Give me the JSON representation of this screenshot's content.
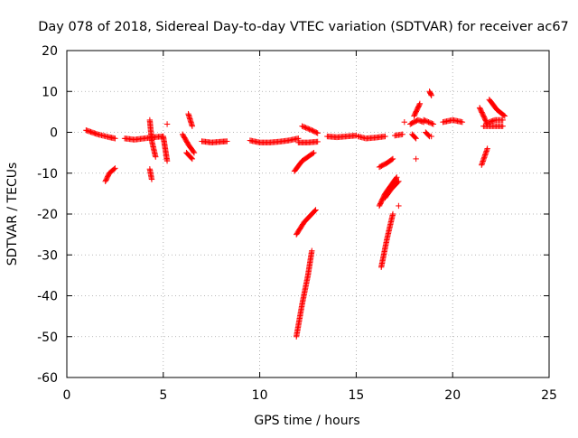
{
  "chart_data": {
    "type": "scatter",
    "title": "Day 078 of 2018, Sidereal Day-to-day VTEC variation (SDTVAR) for receiver ac67",
    "xlabel": "GPS time / hours",
    "ylabel": "SDTVAR / TECUs",
    "xlim": [
      0,
      25
    ],
    "ylim": [
      -60,
      20
    ],
    "xticks": [
      0,
      5,
      10,
      15,
      20,
      25
    ],
    "yticks": [
      -60,
      -50,
      -40,
      -30,
      -20,
      -10,
      0,
      10,
      20
    ],
    "grid": true,
    "marker": "+",
    "series_color": "#ff0000",
    "segments": [
      {
        "x": [
          1.0,
          1.6,
          2.2,
          2.5
        ],
        "y": [
          0.5,
          -0.5,
          -1.2,
          -1.5
        ]
      },
      {
        "x": [
          2.0,
          2.2,
          2.5
        ],
        "y": [
          -12.0,
          -10.0,
          -8.8
        ]
      },
      {
        "x": [
          3.0,
          3.5,
          4.0,
          4.5,
          5.0
        ],
        "y": [
          -1.5,
          -1.8,
          -1.5,
          -1.2,
          -1.0
        ]
      },
      {
        "x": [
          4.3,
          4.4,
          4.6
        ],
        "y": [
          3.0,
          -2.0,
          -6.0
        ]
      },
      {
        "x": [
          4.3,
          4.4
        ],
        "y": [
          -9.0,
          -11.5
        ]
      },
      {
        "x": [
          5.0,
          5.1,
          5.2
        ],
        "y": [
          -1.0,
          -4.0,
          -7.0
        ]
      },
      {
        "x": [
          5.2
        ],
        "y": [
          2.0
        ]
      },
      {
        "x": [
          6.0,
          6.3,
          6.6
        ],
        "y": [
          -0.5,
          -3.0,
          -5.0
        ]
      },
      {
        "x": [
          6.3,
          6.5
        ],
        "y": [
          4.5,
          1.5
        ]
      },
      {
        "x": [
          6.2,
          6.5
        ],
        "y": [
          -5.0,
          -6.5
        ]
      },
      {
        "x": [
          7.0,
          7.5,
          8.0,
          8.3
        ],
        "y": [
          -2.2,
          -2.5,
          -2.3,
          -2.2
        ]
      },
      {
        "x": [
          9.5,
          10.0,
          10.5,
          11.0,
          11.5,
          12.0
        ],
        "y": [
          -2.0,
          -2.5,
          -2.5,
          -2.3,
          -2.0,
          -1.5
        ]
      },
      {
        "x": [
          12.0,
          12.5,
          13.0
        ],
        "y": [
          -2.5,
          -2.5,
          -2.3
        ]
      },
      {
        "x": [
          11.8,
          12.2,
          12.8
        ],
        "y": [
          -9.5,
          -7.0,
          -5.0
        ]
      },
      {
        "x": [
          11.9,
          12.3,
          12.9
        ],
        "y": [
          -25.0,
          -22.0,
          -19.0
        ]
      },
      {
        "x": [
          11.9,
          12.2,
          12.5,
          12.7
        ],
        "y": [
          -50.0,
          -42.0,
          -35.0,
          -29.0
        ]
      },
      {
        "x": [
          12.2,
          12.7,
          13.0
        ],
        "y": [
          1.5,
          0.5,
          -0.2
        ]
      },
      {
        "x": [
          13.5,
          14.0,
          14.5,
          15.0
        ],
        "y": [
          -1.0,
          -1.2,
          -1.0,
          -0.8
        ]
      },
      {
        "x": [
          15.1,
          15.5,
          16.0,
          16.5
        ],
        "y": [
          -1.0,
          -1.5,
          -1.3,
          -1.0
        ]
      },
      {
        "x": [
          16.2,
          16.6,
          16.9
        ],
        "y": [
          -8.5,
          -7.5,
          -6.5
        ]
      },
      {
        "x": [
          16.2,
          16.5,
          16.8,
          17.1
        ],
        "y": [
          -18.0,
          -15.0,
          -13.0,
          -11.0
        ]
      },
      {
        "x": [
          16.3,
          16.6,
          16.9
        ],
        "y": [
          -33.0,
          -26.0,
          -20.0
        ]
      },
      {
        "x": [
          16.5,
          16.8,
          17.2
        ],
        "y": [
          -16.0,
          -14.0,
          -12.0
        ]
      },
      {
        "x": [
          17.2
        ],
        "y": [
          -18.0
        ]
      },
      {
        "x": [
          17.0,
          17.4
        ],
        "y": [
          -0.8,
          -0.5
        ]
      },
      {
        "x": [
          17.5
        ],
        "y": [
          2.5
        ]
      },
      {
        "x": [
          17.8,
          18.2,
          18.5
        ],
        "y": [
          2.0,
          3.0,
          2.5
        ]
      },
      {
        "x": [
          18.0,
          18.3
        ],
        "y": [
          4.0,
          7.0
        ]
      },
      {
        "x": [
          17.9,
          18.1
        ],
        "y": [
          -0.5,
          -1.5
        ]
      },
      {
        "x": [
          18.1
        ],
        "y": [
          -6.5
        ]
      },
      {
        "x": [
          18.5,
          19.0
        ],
        "y": [
          3.0,
          2.0
        ]
      },
      {
        "x": [
          18.6,
          18.8
        ],
        "y": [
          0.0,
          -1.0
        ]
      },
      {
        "x": [
          18.8,
          18.9
        ],
        "y": [
          10.0,
          9.0
        ]
      },
      {
        "x": [
          18.9
        ],
        "y": [
          -1.0
        ]
      },
      {
        "x": [
          19.5,
          20.0,
          20.5
        ],
        "y": [
          2.5,
          3.0,
          2.5
        ]
      },
      {
        "x": [
          21.4,
          21.6,
          21.8
        ],
        "y": [
          6.0,
          4.0,
          2.0
        ]
      },
      {
        "x": [
          21.5,
          21.8
        ],
        "y": [
          -8.0,
          -4.0
        ]
      },
      {
        "x": [
          21.6,
          22.0,
          22.6
        ],
        "y": [
          1.5,
          1.5,
          1.5
        ]
      },
      {
        "x": [
          21.9,
          22.3,
          22.7
        ],
        "y": [
          8.0,
          5.5,
          4.0
        ]
      },
      {
        "x": [
          21.9,
          22.2,
          22.6
        ],
        "y": [
          2.5,
          3.0,
          3.0
        ]
      }
    ]
  }
}
